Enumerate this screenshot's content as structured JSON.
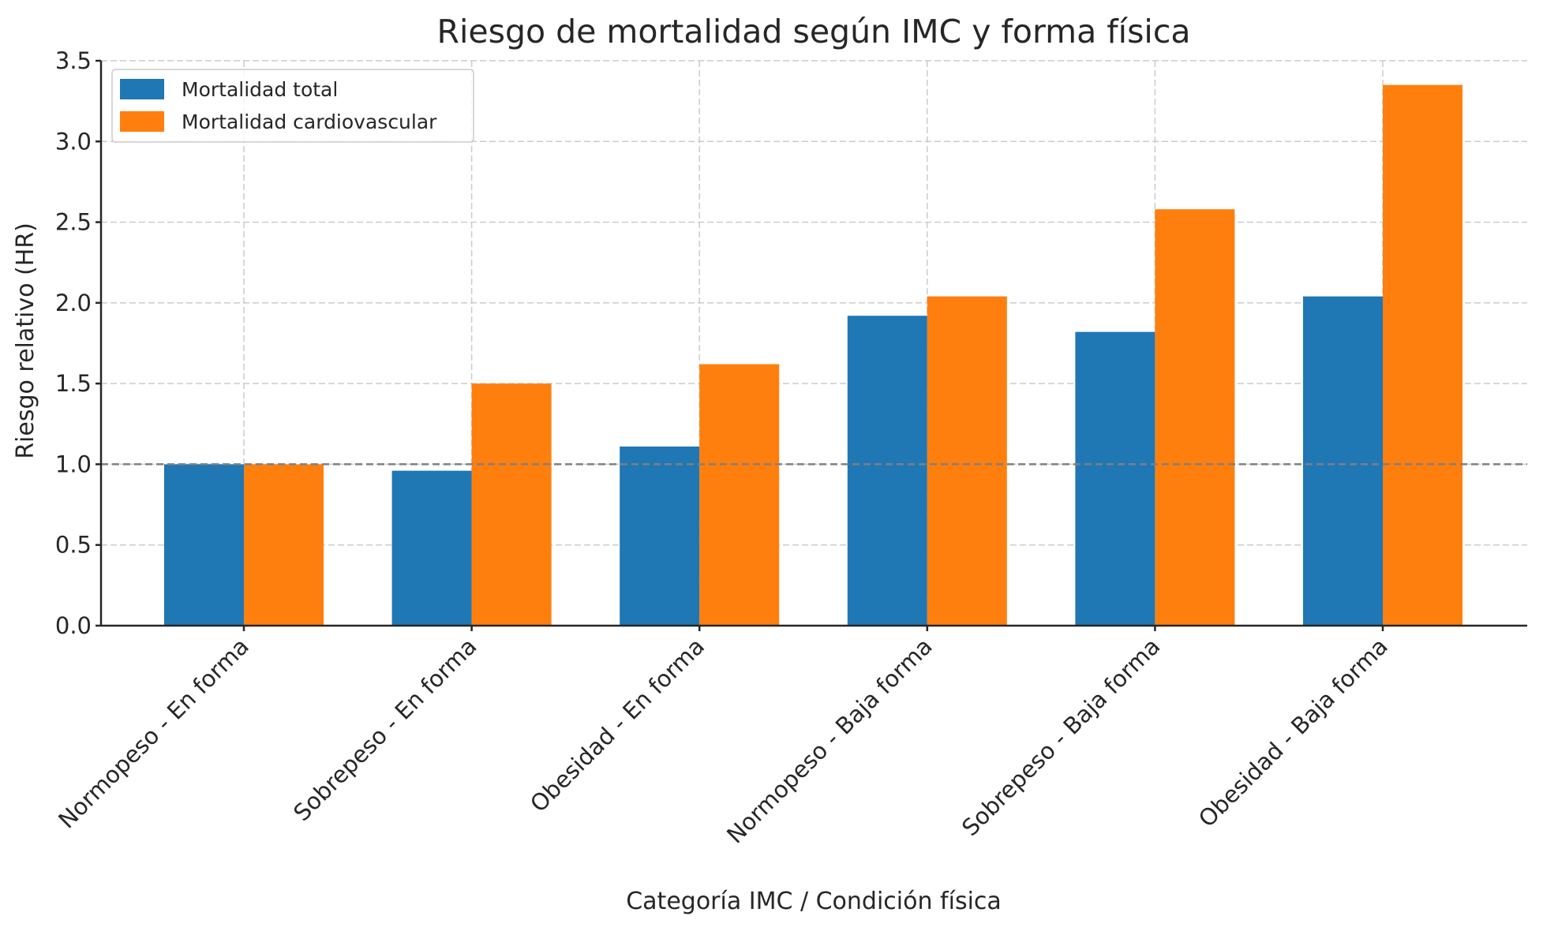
{
  "chart_data": {
    "type": "bar",
    "title": "Riesgo de mortalidad según IMC y forma física",
    "xlabel": "Categoría IMC / Condición física",
    "ylabel": "Riesgo relativo (HR)",
    "ylim": [
      0,
      3.5
    ],
    "yticks": [
      "0.0",
      "0.5",
      "1.0",
      "1.5",
      "2.0",
      "2.5",
      "3.0",
      "3.5"
    ],
    "grid": true,
    "legend_position": "top-left",
    "reference_line": 1.0,
    "categories": [
      "Normopeso - En forma",
      "Sobrepeso - En forma",
      "Obesidad - En forma",
      "Normopeso - Baja forma",
      "Sobrepeso - Baja forma",
      "Obesidad - Baja forma"
    ],
    "series": [
      {
        "name": "Mortalidad total",
        "color": "#1f77b4",
        "values": [
          1.0,
          0.96,
          1.11,
          1.92,
          1.82,
          2.04
        ]
      },
      {
        "name": "Mortalidad cardiovascular",
        "color": "#ff7f0e",
        "values": [
          1.0,
          1.5,
          1.62,
          2.04,
          2.58,
          3.35
        ]
      }
    ]
  }
}
